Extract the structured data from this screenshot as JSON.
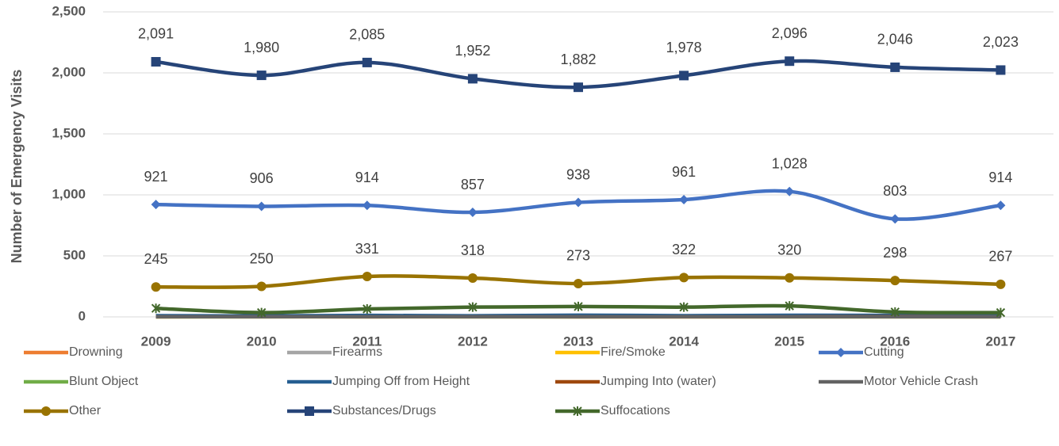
{
  "chart_data": {
    "type": "line",
    "y_label": "Number of Emergency Visits",
    "categories": [
      "2009",
      "2010",
      "2011",
      "2012",
      "2013",
      "2014",
      "2015",
      "2016",
      "2017"
    ],
    "ylim": [
      0,
      2500
    ],
    "yticks": [
      0,
      500,
      {
        "value": 1000,
        "label": "1,000"
      },
      {
        "value": 1500,
        "label": "1,500"
      },
      {
        "value": 2000,
        "label": "2,000"
      },
      {
        "value": 2500,
        "label": "2,500"
      }
    ],
    "grid": true,
    "smooth": true,
    "legend": "bottom",
    "series": [
      {
        "name": "Drowning",
        "color": "#ed7d31",
        "values": [
          3,
          4,
          2,
          5,
          3,
          4,
          8,
          10,
          6
        ]
      },
      {
        "name": "Firearms",
        "color": "#a5a5a5",
        "values": [
          2,
          2,
          3,
          2,
          3,
          3,
          2,
          3,
          2
        ]
      },
      {
        "name": "Fire/Smoke",
        "color": "#ffc000",
        "values": [
          1,
          1,
          1,
          1,
          1,
          1,
          1,
          1,
          1
        ]
      },
      {
        "name": "Cutting",
        "color": "#4472c4",
        "marker": "diamond",
        "values": [
          921,
          906,
          914,
          857,
          938,
          961,
          1028,
          803,
          914
        ],
        "value_labels": [
          "921",
          "906",
          "914",
          "857",
          "938",
          "961",
          "1,028",
          "803",
          "914"
        ]
      },
      {
        "name": "Blunt Object",
        "color": "#70ad47",
        "values": [
          1,
          1,
          2,
          1,
          1,
          2,
          1,
          1,
          1
        ]
      },
      {
        "name": "Jumping Off from Height",
        "color": "#255e91",
        "values": [
          10,
          8,
          12,
          9,
          14,
          10,
          13,
          12,
          9
        ]
      },
      {
        "name": "Jumping Into (water)",
        "color": "#9e480e",
        "values": [
          1,
          2,
          1,
          2,
          1,
          1,
          2,
          3,
          2
        ]
      },
      {
        "name": "Motor Vehicle Crash",
        "color": "#636363",
        "values": [
          2,
          2,
          2,
          2,
          2,
          2,
          2,
          2,
          2
        ]
      },
      {
        "name": "Other",
        "color": "#997300",
        "marker": "circle",
        "values": [
          245,
          250,
          331,
          318,
          273,
          322,
          320,
          298,
          267
        ],
        "value_labels": [
          "245",
          "250",
          "331",
          "318",
          "273",
          "322",
          "320",
          "298",
          "267"
        ]
      },
      {
        "name": "Substances/Drugs",
        "color": "#264478",
        "marker": "square",
        "values": [
          2091,
          1980,
          2085,
          1952,
          1882,
          1978,
          2096,
          2046,
          2023
        ],
        "value_labels": [
          "2,091",
          "1,980",
          "2,085",
          "1,952",
          "1,882",
          "1,978",
          "2,096",
          "2,046",
          "2,023"
        ]
      },
      {
        "name": "Suffocations",
        "color": "#43682b",
        "marker": "star",
        "values": [
          70,
          35,
          65,
          80,
          85,
          80,
          90,
          40,
          35
        ]
      }
    ]
  }
}
